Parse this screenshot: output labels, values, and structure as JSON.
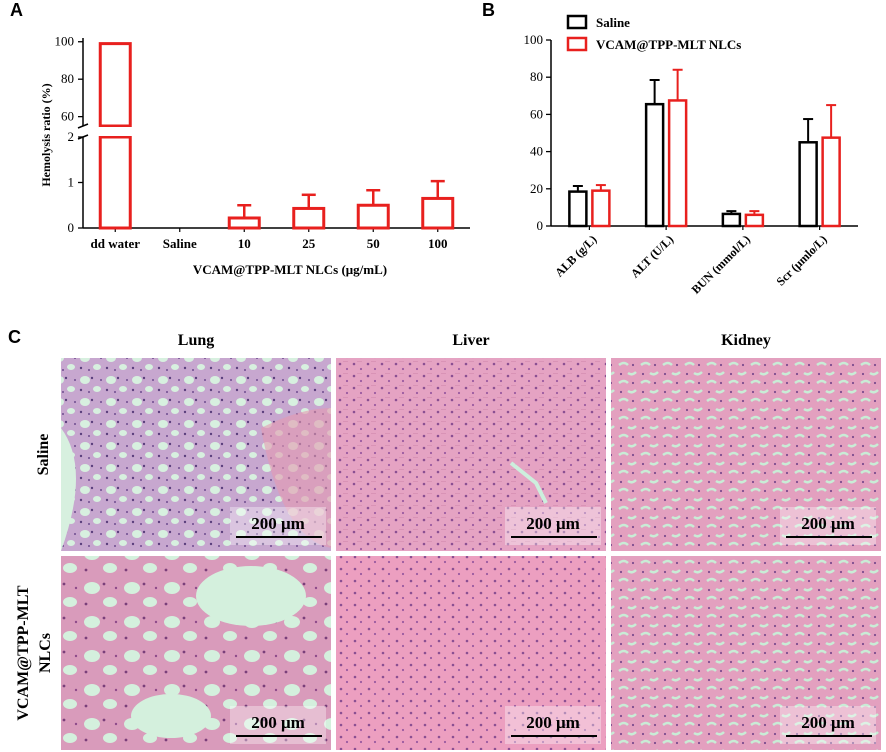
{
  "panels": {
    "a": {
      "letter": "A"
    },
    "b": {
      "letter": "B"
    },
    "c": {
      "letter": "C"
    }
  },
  "chart_data": [
    {
      "type": "bar",
      "panel": "A",
      "ylabel": "Hemolysis ratio (%)",
      "xlabel": "VCAM@TPP-MLT NLCs (μg/mL)",
      "categories": [
        "dd water",
        "Saline",
        "10",
        "25",
        "50",
        "100"
      ],
      "values": [
        99,
        0,
        0.22,
        0.43,
        0.5,
        0.65
      ],
      "errors": [
        0,
        0,
        0.28,
        0.3,
        0.33,
        0.38
      ],
      "y_axis_break": true,
      "ylim_lower": [
        0,
        2
      ],
      "yticks_lower": [
        "0",
        "1",
        "2"
      ],
      "ylim_upper": [
        55,
        102
      ],
      "yticks_upper": [
        "60",
        "80",
        "100"
      ],
      "bar_color": "#e8201e"
    },
    {
      "type": "bar",
      "panel": "B",
      "categories": [
        "ALB (g/L)",
        "ALT (U/L)",
        "BUN (mmol/L)",
        "Scr (μmlo/L)"
      ],
      "series": [
        {
          "name": "Saline",
          "values": [
            18.5,
            65.5,
            6.5,
            45
          ],
          "errors": [
            3,
            13,
            1.5,
            12.5
          ],
          "color": "#000000"
        },
        {
          "name": "VCAM@TPP-MLT NLCs",
          "values": [
            19,
            67.5,
            6,
            47.5
          ],
          "errors": [
            3,
            16.5,
            2,
            17.5
          ],
          "color": "#e8201e"
        }
      ],
      "ylim": [
        0,
        100
      ],
      "yticks": [
        "0",
        "20",
        "40",
        "60",
        "80",
        "100"
      ],
      "legend_position": "top-left"
    }
  ],
  "histology": {
    "columns": [
      "Lung",
      "Liver",
      "Kidney"
    ],
    "rows": [
      "Saline",
      "VCAM@TPP-MLT NLCs"
    ],
    "scale_bar": "200 μm"
  }
}
